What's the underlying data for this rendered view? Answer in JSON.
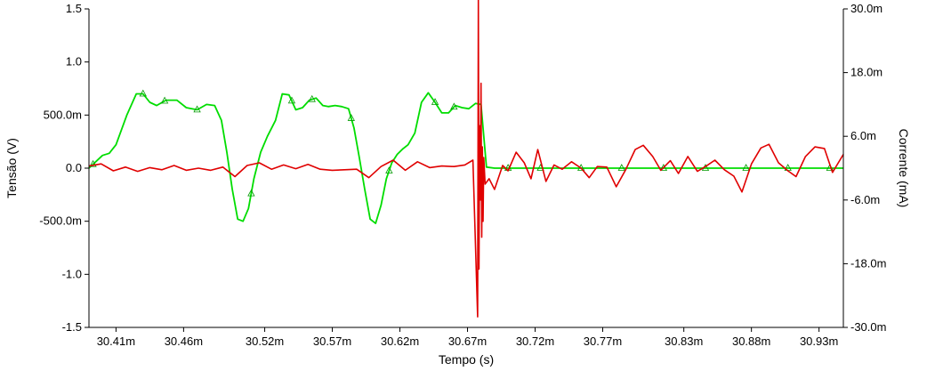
{
  "chart_data": {
    "type": "line",
    "title": "",
    "xlabel": "Tempo (s)",
    "ylabel_left": "Tensão (V)",
    "ylabel_right": "Corrente (mA)",
    "xlim": [
      30.39,
      30.948
    ],
    "ylim_left": [
      -1.5,
      1.5
    ],
    "ylim_right": [
      -30,
      30
    ],
    "x_tick_labels": [
      "30.41m",
      "30.46m",
      "30.52m",
      "30.57m",
      "30.62m",
      "30.67m",
      "30.72m",
      "30.77m",
      "30.83m",
      "30.88m",
      "30.93m"
    ],
    "x_tick_values": [
      30.41,
      30.46,
      30.52,
      30.57,
      30.62,
      30.67,
      30.72,
      30.77,
      30.83,
      30.88,
      30.93
    ],
    "y_left_tick_labels": [
      "1.5",
      "1.0",
      "500.0m",
      "0.0",
      "-500.0m",
      "-1.0",
      "-1.5"
    ],
    "y_left_tick_values": [
      1.5,
      1.0,
      0.5,
      0.0,
      -0.5,
      -1.0,
      -1.5
    ],
    "y_right_tick_labels": [
      "30.0m",
      "18.0m",
      "6.0m",
      "-6.0m",
      "-18.0m",
      "-30.0m"
    ],
    "y_right_tick_values": [
      30,
      18,
      6,
      -6,
      -18,
      -30
    ],
    "grid": false,
    "series": [
      {
        "axis": "left",
        "color": "#00dd00",
        "marker": "triangle",
        "x": [
          30.39,
          30.395,
          30.4,
          30.405,
          30.41,
          30.418,
          30.425,
          30.43,
          30.435,
          30.44,
          30.447,
          30.455,
          30.462,
          30.47,
          30.477,
          30.483,
          30.488,
          30.492,
          30.496,
          30.5,
          30.504,
          30.508,
          30.512,
          30.517,
          30.522,
          30.528,
          30.533,
          30.538,
          30.543,
          30.548,
          30.553,
          30.558,
          30.563,
          30.567,
          30.572,
          30.577,
          30.582,
          30.586,
          30.59,
          30.594,
          30.598,
          30.602,
          30.606,
          30.61,
          30.614,
          30.618,
          30.622,
          30.626,
          30.631,
          30.636,
          30.641,
          30.646,
          30.651,
          30.656,
          30.661,
          30.666,
          30.671,
          30.676,
          30.68,
          30.684,
          30.69,
          30.7,
          30.72,
          30.74,
          30.76,
          30.78,
          30.8,
          30.82,
          30.84,
          30.86,
          30.88,
          30.9,
          30.92,
          30.948
        ],
        "y": [
          0.0,
          0.06,
          0.12,
          0.14,
          0.22,
          0.5,
          0.7,
          0.7,
          0.62,
          0.59,
          0.64,
          0.64,
          0.57,
          0.55,
          0.6,
          0.59,
          0.45,
          0.15,
          -0.2,
          -0.48,
          -0.5,
          -0.38,
          -0.1,
          0.15,
          0.3,
          0.45,
          0.7,
          0.69,
          0.55,
          0.57,
          0.64,
          0.66,
          0.59,
          0.58,
          0.59,
          0.58,
          0.56,
          0.38,
          0.1,
          -0.2,
          -0.48,
          -0.52,
          -0.35,
          -0.1,
          0.05,
          0.13,
          0.18,
          0.22,
          0.33,
          0.62,
          0.71,
          0.62,
          0.52,
          0.52,
          0.59,
          0.57,
          0.56,
          0.61,
          0.6,
          0.01,
          0.0,
          0.0,
          0.0,
          0.0,
          0.0,
          0.0,
          0.0,
          0.0,
          0.0,
          0.0,
          0.0,
          0.0,
          0.0,
          0.0
        ],
        "marker_x": [
          30.393,
          30.43,
          30.446,
          30.47,
          30.51,
          30.54,
          30.555,
          30.584,
          30.612,
          30.646,
          30.66,
          30.7,
          30.724,
          30.754,
          30.784,
          30.815,
          30.846,
          30.876,
          30.907,
          30.938
        ]
      },
      {
        "axis": "right",
        "color": "#e00000",
        "marker": "none",
        "x": [
          30.39,
          30.399,
          30.408,
          30.417,
          30.426,
          30.435,
          30.444,
          30.453,
          30.462,
          30.471,
          30.48,
          30.489,
          30.498,
          30.507,
          30.516,
          30.525,
          30.534,
          30.543,
          30.552,
          30.561,
          30.57,
          30.579,
          30.588,
          30.597,
          30.606,
          30.615,
          30.624,
          30.633,
          30.642,
          30.651,
          30.66,
          30.668,
          30.674,
          30.6775,
          30.678,
          30.6785,
          30.679,
          30.6795,
          30.68,
          30.6805,
          30.681,
          30.6815,
          30.682,
          30.683,
          30.686,
          30.69,
          30.696,
          30.7,
          30.706,
          30.712,
          30.717,
          30.722,
          30.728,
          30.734,
          30.74,
          30.747,
          30.754,
          30.76,
          30.766,
          30.773,
          30.78,
          30.787,
          30.794,
          30.8,
          30.807,
          30.813,
          30.82,
          30.826,
          30.833,
          30.84,
          30.846,
          30.853,
          30.86,
          30.867,
          30.873,
          30.88,
          30.887,
          30.893,
          30.9,
          30.907,
          30.913,
          30.92,
          30.927,
          30.934,
          30.94,
          30.948
        ],
        "y": [
          0.4,
          0.8,
          -0.5,
          0.2,
          -0.6,
          0.1,
          -0.3,
          0.5,
          -0.4,
          0.0,
          -0.4,
          0.2,
          -1.6,
          0.5,
          1.0,
          -0.2,
          0.6,
          -0.1,
          0.7,
          -0.2,
          -0.4,
          -0.3,
          -0.2,
          -1.8,
          0.3,
          1.5,
          -0.4,
          1.2,
          0.1,
          0.4,
          0.3,
          0.6,
          1.5,
          -28.0,
          32.0,
          -19.0,
          8.0,
          -6.0,
          16.0,
          -13.0,
          4.0,
          -10.0,
          2.0,
          -3.0,
          -2.0,
          -4.0,
          0.5,
          -0.5,
          3.0,
          1.0,
          -2.0,
          3.5,
          -2.5,
          0.6,
          -0.2,
          1.2,
          0.0,
          -1.8,
          0.3,
          0.2,
          -3.5,
          -0.3,
          3.5,
          4.3,
          2.2,
          -0.4,
          1.4,
          -1.0,
          2.2,
          -0.6,
          0.3,
          1.5,
          -0.3,
          -1.5,
          -4.5,
          0.8,
          3.8,
          4.5,
          1.0,
          -0.5,
          -1.6,
          2.2,
          4.0,
          3.7,
          -0.8,
          2.6
        ]
      }
    ]
  }
}
